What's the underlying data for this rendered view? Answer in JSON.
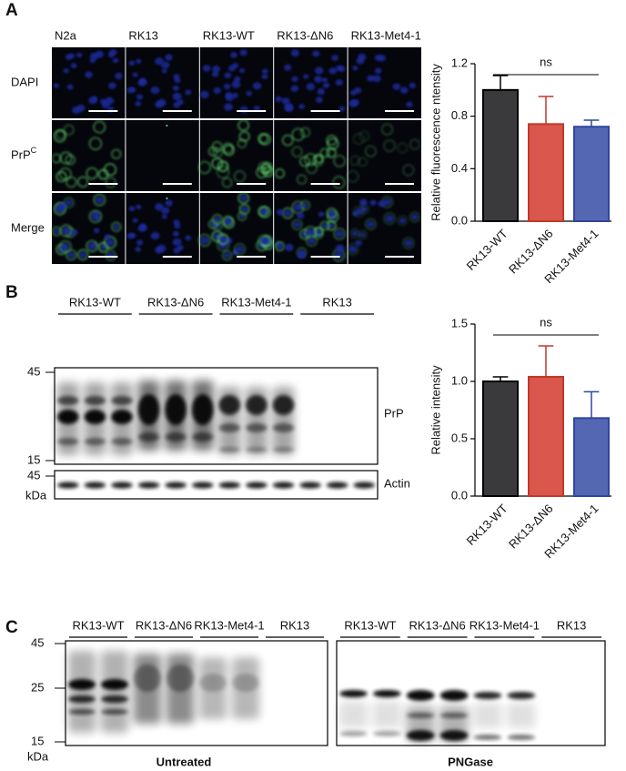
{
  "figure_labels": [
    "A",
    "B",
    "C"
  ],
  "microscopy": {
    "columns": [
      "N2a",
      "RK13",
      "RK13-WT",
      "RK13-ΔN6",
      "RK13-Met4-1"
    ],
    "rows": [
      {
        "text": "DAPI"
      },
      {
        "text": "PrP",
        "sup": "C"
      },
      {
        "text": "Merge"
      }
    ]
  },
  "blot_b": {
    "groups": [
      "RK13-WT",
      "RK13-ΔN6",
      "RK13-Met4-1",
      "RK13"
    ],
    "markers": [
      "45",
      "15"
    ],
    "actin_marker": "45",
    "unit": "kDa",
    "labels": [
      "PrP",
      "Actin"
    ]
  },
  "blot_c": {
    "groups": [
      "RK13-WT",
      "RK13-ΔN6",
      "RK13-Met4-1",
      "RK13"
    ],
    "markers": [
      "45",
      "25",
      "15"
    ],
    "unit": "kDa",
    "conditions": [
      "Untreated",
      "PNGase"
    ]
  },
  "chart_data": [
    {
      "type": "bar",
      "ylabel": "Relative fluorescence ntensity",
      "categories": [
        "RK13-WT",
        "RK13-ΔN6",
        "RK13-Met4-1"
      ],
      "values": [
        1.0,
        0.74,
        0.72
      ],
      "errors": [
        0.11,
        0.21,
        0.05
      ],
      "colors": [
        "#3a3a3c",
        "#d9574c",
        "#5467b3"
      ],
      "edge_colors": [
        "#000000",
        "#c0392b",
        "#2f45a0"
      ],
      "ylim": [
        0,
        1.2
      ],
      "yticks": [
        {
          "value": 0,
          "label": "0.0"
        },
        0.4,
        0.8,
        1.2
      ],
      "annotation": "ns"
    },
    {
      "type": "bar",
      "ylabel": "Relative intensity",
      "categories": [
        "RK13-WT",
        "RK13-ΔN6",
        "RK13-Met4-1"
      ],
      "values": [
        1.0,
        1.04,
        0.68
      ],
      "errors": [
        0.04,
        0.27,
        0.23
      ],
      "colors": [
        "#3a3a3c",
        "#d9574c",
        "#5467b3"
      ],
      "edge_colors": [
        "#000000",
        "#c0392b",
        "#2f45a0"
      ],
      "ylim": [
        0,
        1.5
      ],
      "yticks": [
        {
          "value": 0,
          "label": "0.0"
        },
        0.5,
        {
          "value": 1,
          "label": "1.0"
        },
        1.5
      ],
      "annotation": "ns"
    }
  ]
}
